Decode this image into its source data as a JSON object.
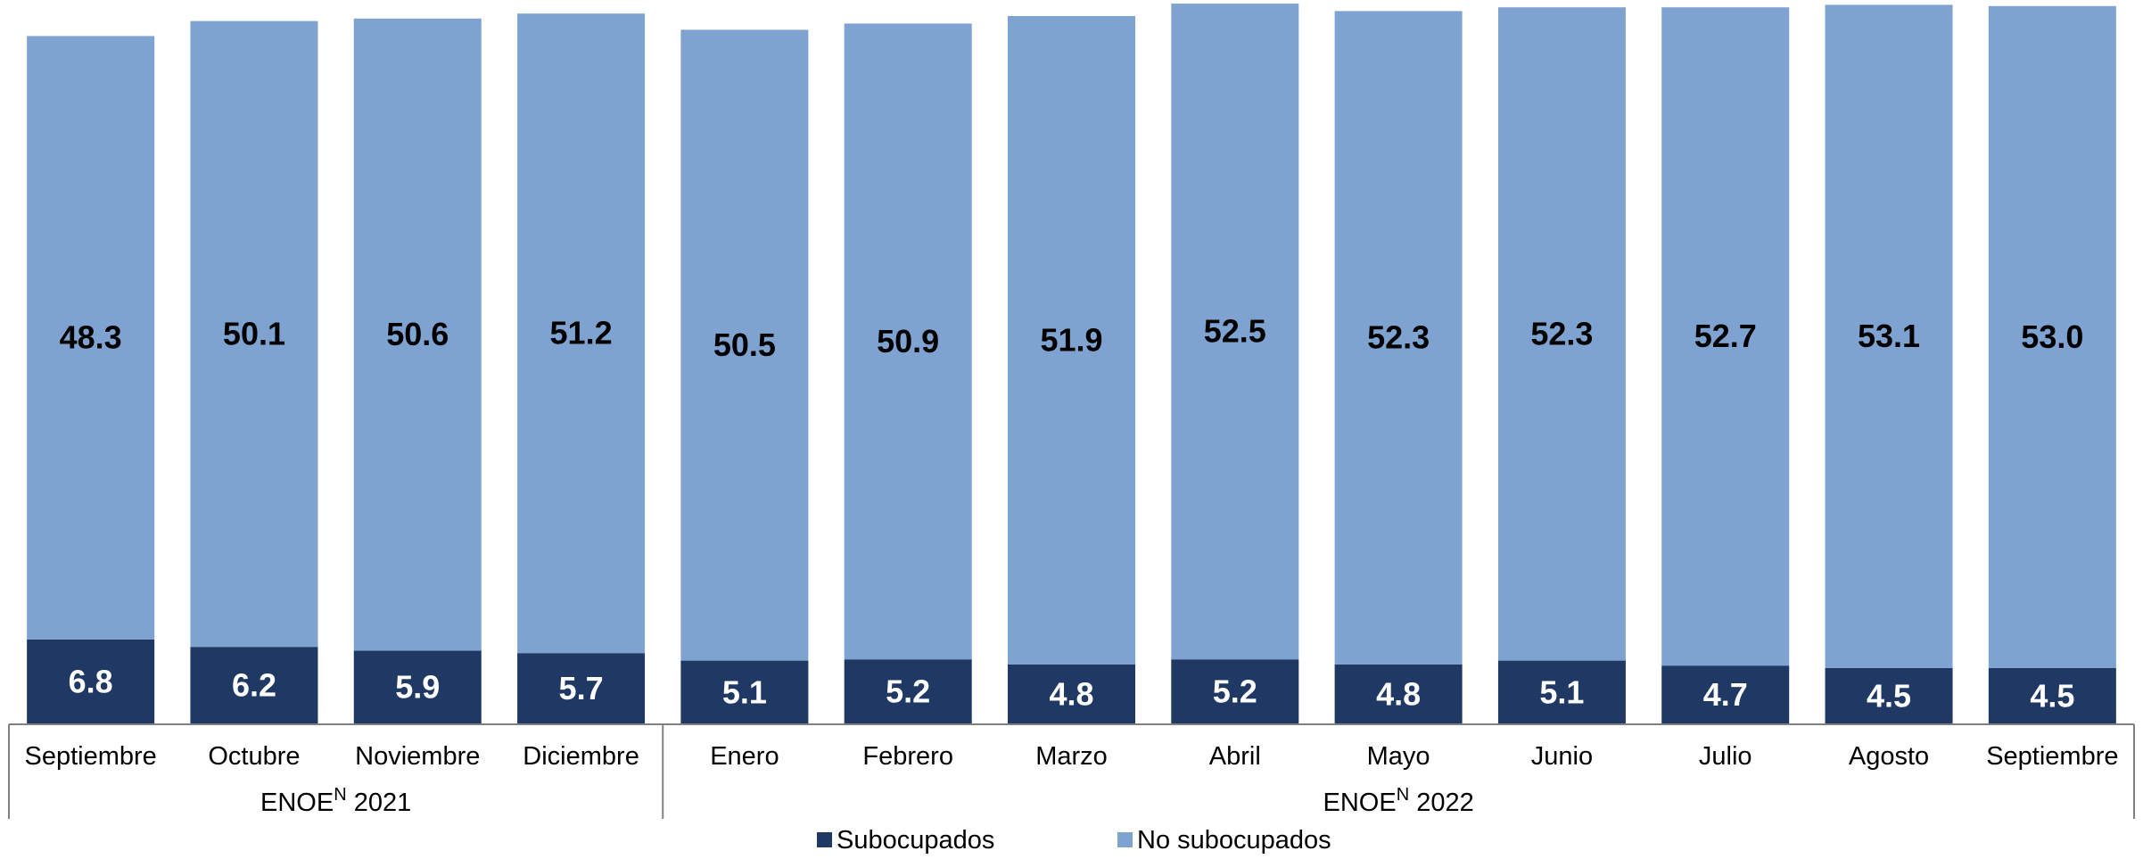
{
  "chart_data": {
    "type": "bar",
    "stacked": true,
    "categories": [
      "Septiembre",
      "Octubre",
      "Noviembre",
      "Diciembre",
      "Enero",
      "Febrero",
      "Marzo",
      "Abril",
      "Mayo",
      "Junio",
      "Julio",
      "Agosto",
      "Septiembre"
    ],
    "groups": [
      {
        "label": "ENOE",
        "superscript": "N",
        "year": "2021",
        "count": 4
      },
      {
        "label": "ENOE",
        "superscript": "N",
        "year": "2022",
        "count": 9
      }
    ],
    "series": [
      {
        "name": "Subocupados",
        "color": "#203864",
        "label_color": "#ffffff",
        "values": [
          6.8,
          6.2,
          5.9,
          5.7,
          5.1,
          5.2,
          4.8,
          5.2,
          4.8,
          5.1,
          4.7,
          4.5,
          4.5
        ]
      },
      {
        "name": "No subocupados",
        "color": "#7ea3d1",
        "label_color": "#000000",
        "values": [
          48.3,
          50.1,
          50.6,
          51.2,
          50.5,
          50.9,
          51.9,
          52.5,
          52.3,
          52.3,
          52.7,
          53.1,
          53.0
        ]
      }
    ],
    "legend_position": "bottom",
    "grid": false,
    "ylim": [
      0,
      57.7
    ]
  }
}
